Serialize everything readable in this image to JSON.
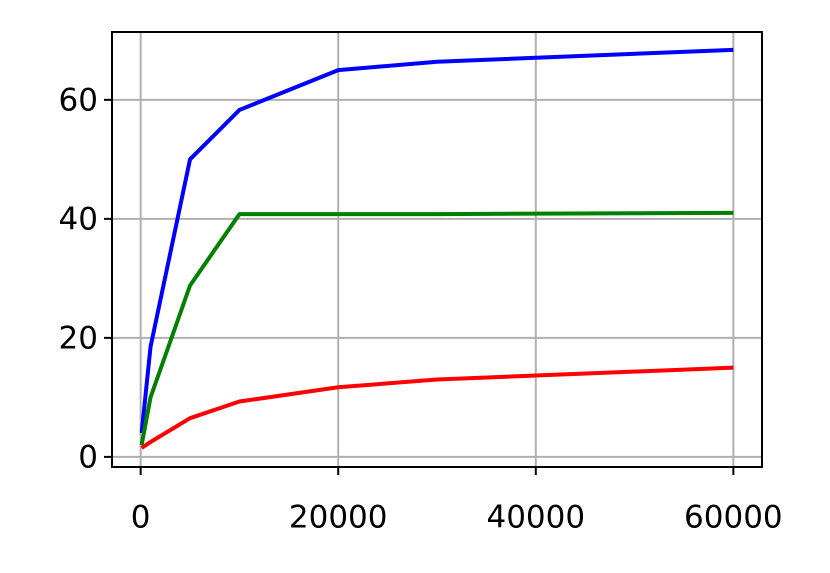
{
  "chart_data": {
    "type": "line",
    "x": [
      100,
      1000,
      5000,
      10000,
      20000,
      30000,
      60000
    ],
    "series": [
      {
        "color": "#0000ff",
        "values": [
          4,
          18.5,
          50,
          58.3,
          65,
          66.4,
          68.4
        ]
      },
      {
        "color": "#008000",
        "values": [
          2,
          10,
          28.8,
          40.8,
          40.8,
          40.8,
          41
        ]
      },
      {
        "color": "#ff0000",
        "values": [
          1.5,
          2.5,
          6.5,
          9.3,
          11.7,
          13,
          15
        ]
      }
    ],
    "xlim": [
      -2900,
      62900
    ],
    "xticks": [
      0,
      20000,
      40000,
      60000
    ],
    "ylim": [
      -1.7,
      71.4
    ],
    "yticks": [
      0,
      20,
      40,
      60
    ],
    "grid": true
  }
}
